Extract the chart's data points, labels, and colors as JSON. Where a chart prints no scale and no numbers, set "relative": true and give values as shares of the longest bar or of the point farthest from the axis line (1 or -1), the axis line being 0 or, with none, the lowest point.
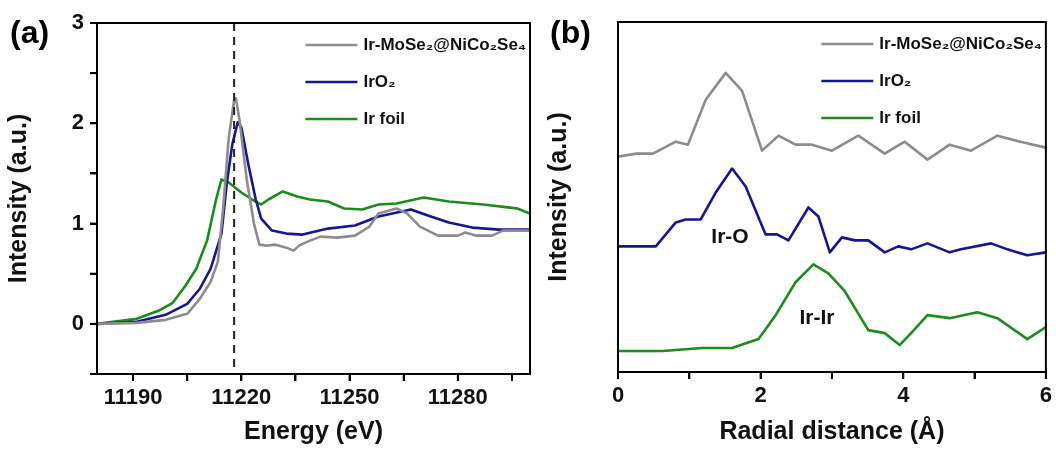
{
  "chart_data": [
    {
      "type": "line",
      "title": "(a)",
      "xlabel": "Energy (eV)",
      "ylabel": "Intensity (a.u.)",
      "xlim": [
        11180,
        11300
      ],
      "ylim": [
        -0.5,
        3
      ],
      "xticks": [
        11190,
        {
          "value": 11205,
          "label": null
        },
        11220,
        {
          "value": 11235,
          "label": null
        },
        11250,
        {
          "value": 11265,
          "label": null
        },
        11280,
        {
          "value": 11295,
          "label": null
        }
      ],
      "yticks": [
        {
          "value": -0.5,
          "label": null
        },
        0,
        {
          "value": 0.5,
          "label": null
        },
        1,
        {
          "value": 1.5,
          "label": null
        },
        2,
        {
          "value": 2.5,
          "label": null
        },
        3
      ],
      "grid": false,
      "legend": "top right",
      "marker": "none",
      "line_style": "solid",
      "ref_lines": [
        {
          "axis": "x",
          "value": 11218,
          "label": null,
          "color": "#222222",
          "line_style": "dashed"
        }
      ],
      "series": [
        {
          "name": "Ir-MoSe₂@NiCo₂Se₄",
          "color": "#8c8c8c",
          "x": [
            11180,
            11191,
            11199,
            11205,
            11208.5,
            11211.5,
            11213.5,
            11215,
            11216.5,
            11218,
            11218.5,
            11219.5,
            11221.5,
            11223.5,
            11225,
            11227,
            11229.5,
            11232.5,
            11234.5,
            11236,
            11239,
            11242,
            11246.5,
            11251.5,
            11255.5,
            11258,
            11263,
            11266,
            11269.5,
            11274.5,
            11280,
            11282,
            11285,
            11289.5,
            11292.5,
            11300
          ],
          "values": [
            0,
            0.01,
            0.04,
            0.1,
            0.25,
            0.42,
            0.62,
            1.17,
            1.85,
            2.23,
            2.25,
            2.03,
            1.44,
            1.0,
            0.79,
            0.78,
            0.79,
            0.76,
            0.73,
            0.78,
            0.83,
            0.87,
            0.86,
            0.88,
            0.97,
            1.1,
            1.15,
            1.1,
            0.97,
            0.88,
            0.88,
            0.91,
            0.88,
            0.88,
            0.93,
            0.93
          ]
        },
        {
          "name": "IrO₂",
          "color": "#161690",
          "x": [
            11180,
            11191,
            11199,
            11205,
            11208.5,
            11211.5,
            11214.5,
            11216,
            11217.5,
            11219,
            11220,
            11222,
            11224,
            11225.5,
            11228.5,
            11232.5,
            11237,
            11244,
            11251.5,
            11258,
            11267,
            11272.5,
            11277.5,
            11284,
            11291.5,
            11300
          ],
          "values": [
            0,
            0.02,
            0.09,
            0.2,
            0.35,
            0.55,
            0.9,
            1.41,
            1.79,
            2.01,
            1.96,
            1.58,
            1.24,
            1.05,
            0.93,
            0.9,
            0.89,
            0.95,
            0.98,
            1.07,
            1.14,
            1.07,
            1.01,
            0.96,
            0.94,
            0.94
          ]
        },
        {
          "name": "Ir foil",
          "color": "#1c8c1c",
          "x": [
            11180,
            11191,
            11197,
            11201,
            11204.5,
            11207.5,
            11210.5,
            11213,
            11214.5,
            11216.5,
            11220,
            11223,
            11225.5,
            11227.5,
            11231.5,
            11235.5,
            11239,
            11244,
            11248.5,
            11253.5,
            11258,
            11263,
            11268,
            11270.5,
            11277.5,
            11287,
            11296.5,
            11300
          ],
          "values": [
            0,
            0.05,
            0.13,
            0.21,
            0.38,
            0.55,
            0.83,
            1.24,
            1.44,
            1.41,
            1.31,
            1.24,
            1.19,
            1.24,
            1.32,
            1.27,
            1.24,
            1.22,
            1.15,
            1.14,
            1.19,
            1.2,
            1.24,
            1.26,
            1.22,
            1.19,
            1.15,
            1.1
          ]
        }
      ]
    },
    {
      "type": "line",
      "title": "(b)",
      "xlabel": "Radial distance (Å)",
      "ylabel": "Intensity (a.u.)",
      "relative": true,
      "xlim": [
        0,
        6
      ],
      "xticks": [
        0,
        {
          "value": 1,
          "label": null
        },
        2,
        {
          "value": 3,
          "label": null
        },
        4,
        {
          "value": 5,
          "label": null
        },
        6
      ],
      "grid": false,
      "legend": "top right",
      "marker": "none",
      "line_style": "solid",
      "annotations": [
        "Ir-O",
        "Ir-Ir"
      ],
      "series": [
        {
          "name": "Ir-MoSe₂@NiCo₂Se₄",
          "color": "#8c8c8c",
          "x": [
            0,
            0.26,
            0.49,
            0.81,
            0.98,
            1.23,
            1.51,
            1.74,
            2.02,
            2.25,
            2.49,
            2.72,
            3.0,
            3.37,
            3.74,
            4.02,
            4.34,
            4.65,
            4.95,
            5.32,
            5.64,
            6
          ],
          "values": [
            0.72,
            0.73,
            0.73,
            0.77,
            0.76,
            0.91,
            1,
            0.94,
            0.74,
            0.79,
            0.76,
            0.76,
            0.74,
            0.79,
            0.73,
            0.77,
            0.71,
            0.76,
            0.74,
            0.79,
            0.77,
            0.75
          ]
        },
        {
          "name": "IrO₂",
          "color": "#161690",
          "x": [
            0,
            0.35,
            0.53,
            0.81,
            0.95,
            1.16,
            1.37,
            1.6,
            1.79,
            2.07,
            2.23,
            2.39,
            2.67,
            2.81,
            2.97,
            3.14,
            3.32,
            3.51,
            3.74,
            3.93,
            4.11,
            4.34,
            4.65,
            4.81,
            5.23,
            5.46,
            5.74,
            6
          ],
          "values": [
            0.42,
            0.42,
            0.42,
            0.5,
            0.51,
            0.51,
            0.6,
            0.68,
            0.62,
            0.46,
            0.46,
            0.44,
            0.55,
            0.52,
            0.4,
            0.45,
            0.44,
            0.44,
            0.4,
            0.42,
            0.41,
            0.43,
            0.4,
            0.41,
            0.43,
            0.41,
            0.39,
            0.4
          ]
        },
        {
          "name": "Ir foil",
          "color": "#1c8c1c",
          "x": [
            0,
            0.63,
            1.18,
            1.6,
            1.97,
            2.21,
            2.49,
            2.74,
            2.95,
            3.18,
            3.51,
            3.74,
            3.95,
            4.11,
            4.34,
            4.65,
            5.04,
            5.32,
            5.74,
            6
          ],
          "values": [
            0.07,
            0.07,
            0.08,
            0.08,
            0.11,
            0.19,
            0.3,
            0.36,
            0.33,
            0.27,
            0.14,
            0.13,
            0.09,
            0.13,
            0.19,
            0.18,
            0.2,
            0.18,
            0.11,
            0.15
          ]
        }
      ]
    }
  ]
}
